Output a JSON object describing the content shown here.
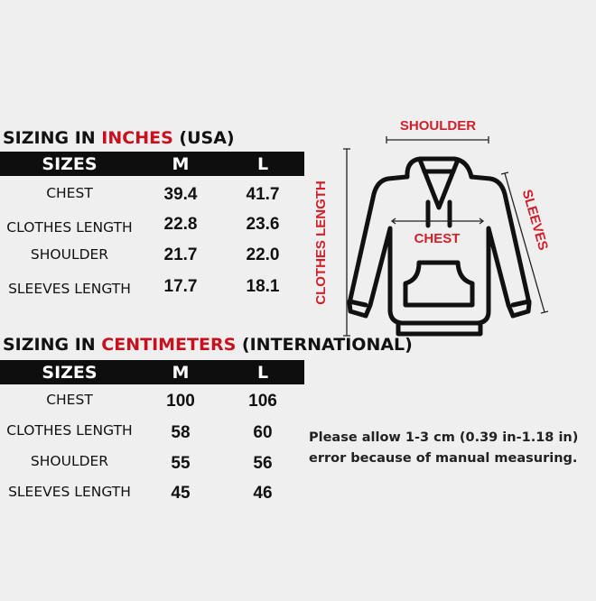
{
  "inches": {
    "title_prefix": "SIZING IN ",
    "title_unit": "INCHES",
    "title_suffix": " (USA)",
    "header": [
      "SIZES",
      "M",
      "L"
    ],
    "rows": [
      {
        "label": "CHEST",
        "m": "39.4",
        "l": "41.7"
      },
      {
        "label": "CLOTHES LENGTH",
        "m": "22.8",
        "l": "23.6"
      },
      {
        "label": "SHOULDER",
        "m": "21.7",
        "l": "22.0"
      },
      {
        "label": "SLEEVES LENGTH",
        "m": "17.7",
        "l": "18.1"
      }
    ]
  },
  "cm": {
    "title_prefix": "SIZING IN ",
    "title_unit": "CENTIMETERS",
    "title_suffix": " (INTERNATIONAL)",
    "header": [
      "SIZES",
      "M",
      "L"
    ],
    "rows": [
      {
        "label": "CHEST",
        "m": "100",
        "l": "106"
      },
      {
        "label": "CLOTHES LENGTH",
        "m": "58",
        "l": "60"
      },
      {
        "label": "SHOULDER",
        "m": "55",
        "l": "56"
      },
      {
        "label": "SLEEVES LENGTH",
        "m": "45",
        "l": "46"
      }
    ]
  },
  "diagram": {
    "shoulder": "SHOULDER",
    "clothes_length": "CLOTHES LENGTH",
    "chest": "CHEST",
    "sleeves": "SLEEVES"
  },
  "note": "Please allow 1-3 cm (0.39 in-1.18 in) error because of manual measuring.",
  "colors": {
    "accent": "#c8101e",
    "header_bg": "#0e0e0e",
    "background": "#efefef"
  }
}
